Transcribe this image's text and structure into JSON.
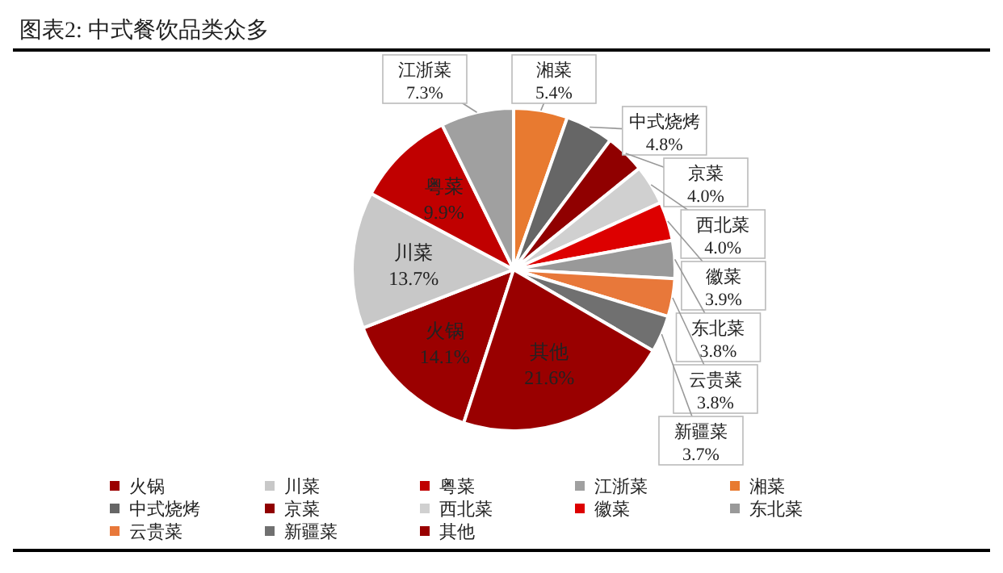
{
  "chart_data": {
    "type": "pie",
    "title": "图表2: 中式餐饮品类众多",
    "categories": [
      "火锅",
      "川菜",
      "粤菜",
      "江浙菜",
      "湘菜",
      "中式烧烤",
      "京菜",
      "西北菜",
      "徽菜",
      "东北菜",
      "云贵菜",
      "新疆菜",
      "其他"
    ],
    "values": [
      14.1,
      13.7,
      9.9,
      7.3,
      5.4,
      4.8,
      4.0,
      4.0,
      3.9,
      3.8,
      3.8,
      3.7,
      21.6
    ],
    "value_labels": [
      "14.1%",
      "13.7%",
      "9.9%",
      "7.3%",
      "5.4%",
      "4.8%",
      "4.0%",
      "4.0%",
      "3.9%",
      "3.8%",
      "3.8%",
      "3.7%",
      "21.6%"
    ],
    "colors": [
      "#9b0000",
      "#c8c8c8",
      "#c00000",
      "#a0a0a0",
      "#e87a30",
      "#666666",
      "#900000",
      "#d0d0d0",
      "#dd0000",
      "#999999",
      "#e8783a",
      "#707070",
      "#990000"
    ],
    "legend": "bottom"
  }
}
